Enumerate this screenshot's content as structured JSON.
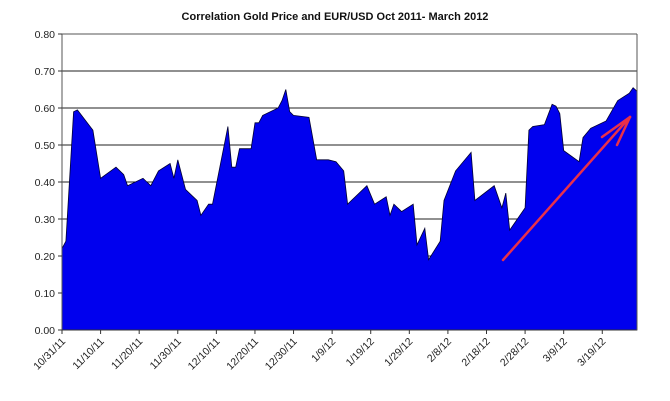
{
  "chart_data": {
    "type": "area",
    "title": "Correlation Gold Price and EUR/USD Oct 2011- March 2012",
    "xlabel": "",
    "ylabel": "",
    "ylim": [
      0,
      0.8
    ],
    "xlim": [
      "2011-10-31",
      "2012-03-28"
    ],
    "grid": true,
    "legend": "none",
    "fill_color": "#0000ee",
    "annotation_arrow_color": "#e8304a",
    "y_ticks": [
      "0.00",
      "0.10",
      "0.20",
      "0.30",
      "0.40",
      "0.50",
      "0.60",
      "0.70",
      "0.80"
    ],
    "x_ticks": [
      "10/31/11",
      "11/10/11",
      "11/20/11",
      "11/30/11",
      "12/10/11",
      "12/20/11",
      "12/30/11",
      "1/9/12",
      "1/19/12",
      "1/29/12",
      "2/8/12",
      "2/18/12",
      "2/28/12",
      "3/9/12",
      "3/19/12"
    ],
    "series": [
      {
        "x": [
          "2011-10-31",
          "2011-11-01",
          "2011-11-03",
          "2011-11-04",
          "2011-11-08",
          "2011-11-10",
          "2011-11-14",
          "2011-11-16",
          "2011-11-17",
          "2011-11-21",
          "2011-11-22",
          "2011-11-23",
          "2011-11-25",
          "2011-11-28",
          "2011-11-29",
          "2011-11-30",
          "2011-12-02",
          "2011-12-05",
          "2011-12-06",
          "2011-12-08",
          "2011-12-09",
          "2011-12-13",
          "2011-12-14",
          "2011-12-15",
          "2011-12-16",
          "2011-12-19",
          "2011-12-20",
          "2011-12-21",
          "2011-12-22",
          "2011-12-26",
          "2011-12-27",
          "2011-12-28",
          "2011-12-29",
          "2011-12-30",
          "2012-01-03",
          "2012-01-05",
          "2012-01-08",
          "2012-01-10",
          "2012-01-12",
          "2012-01-13",
          "2012-01-18",
          "2012-01-20",
          "2012-01-23",
          "2012-01-24",
          "2012-01-25",
          "2012-01-27",
          "2012-01-30",
          "2012-01-31",
          "2012-02-02",
          "2012-02-03",
          "2012-02-06",
          "2012-02-07",
          "2012-02-10",
          "2012-02-14",
          "2012-02-15",
          "2012-02-20",
          "2012-02-22",
          "2012-02-23",
          "2012-02-24",
          "2012-02-28",
          "2012-02-29",
          "2012-03-01",
          "2012-03-04",
          "2012-03-06",
          "2012-03-07",
          "2012-03-08",
          "2012-03-09",
          "2012-03-13",
          "2012-03-14",
          "2012-03-16",
          "2012-03-20",
          "2012-03-23",
          "2012-03-26",
          "2012-03-27",
          "2012-03-28"
        ],
        "y": [
          0.22,
          0.24,
          0.59,
          0.595,
          0.54,
          0.41,
          0.44,
          0.42,
          0.39,
          0.41,
          0.4,
          0.39,
          0.43,
          0.45,
          0.41,
          0.46,
          0.38,
          0.35,
          0.31,
          0.34,
          0.34,
          0.55,
          0.44,
          0.44,
          0.49,
          0.49,
          0.56,
          0.56,
          0.58,
          0.6,
          0.62,
          0.65,
          0.59,
          0.58,
          0.575,
          0.46,
          0.46,
          0.455,
          0.43,
          0.34,
          0.39,
          0.34,
          0.36,
          0.31,
          0.34,
          0.32,
          0.34,
          0.23,
          0.275,
          0.19,
          0.24,
          0.35,
          0.43,
          0.48,
          0.35,
          0.39,
          0.33,
          0.37,
          0.27,
          0.33,
          0.54,
          0.55,
          0.555,
          0.61,
          0.605,
          0.585,
          0.485,
          0.455,
          0.52,
          0.545,
          0.565,
          0.62,
          0.64,
          0.655,
          0.645
        ]
      }
    ]
  }
}
